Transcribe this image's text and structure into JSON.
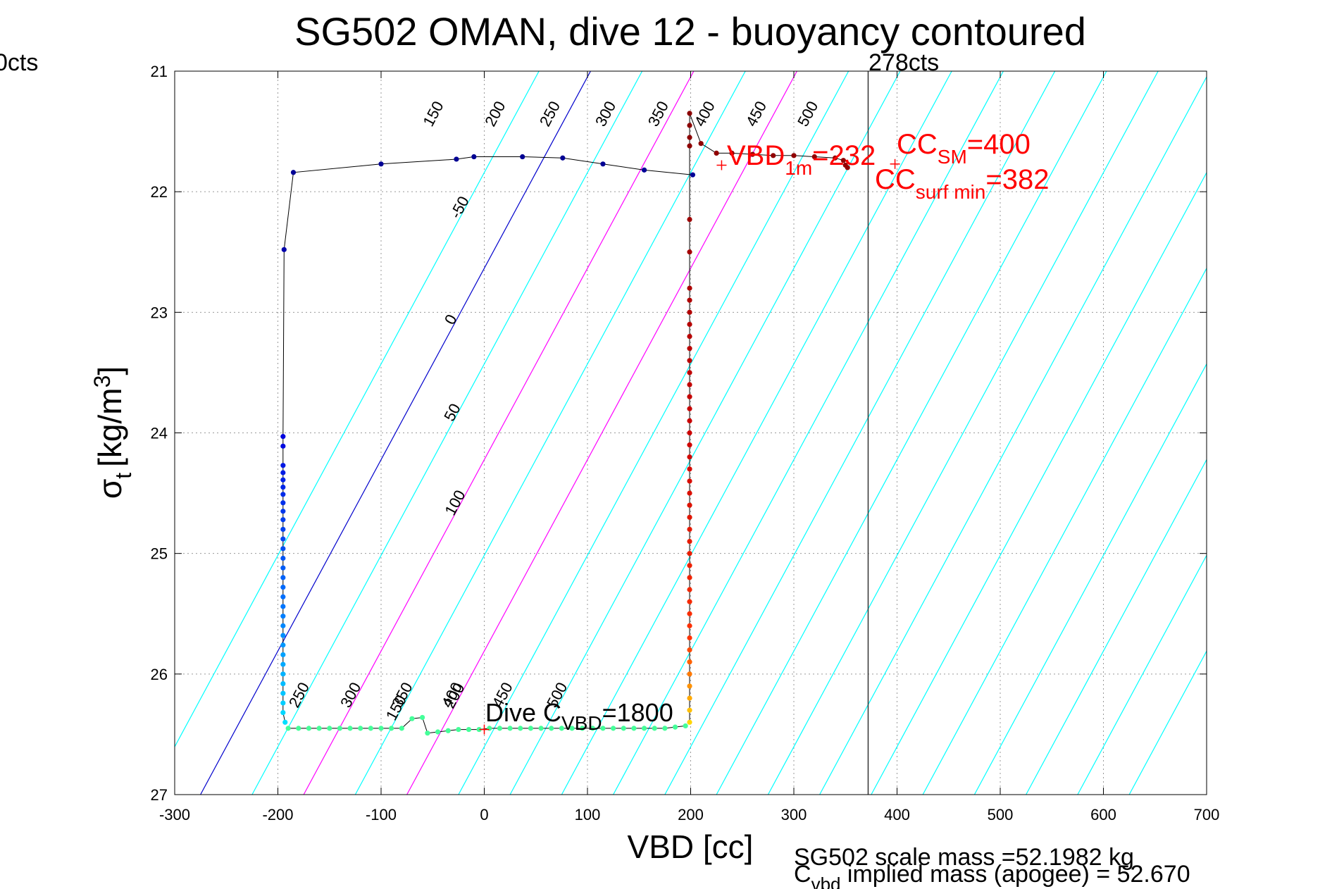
{
  "chart_data": {
    "type": "scatter",
    "title": "SG502 OMAN, dive 12 - buoyancy contoured",
    "xlabel": "VBD [cc]",
    "ylabel": {
      "main": "σ",
      "sub": "t",
      "unit_pre": "[kg/m",
      "unit_sup": "3",
      "unit_post": "]"
    },
    "xlim": [
      -300,
      700
    ],
    "ylim": [
      27,
      21
    ],
    "y_reversed": true,
    "grid": true,
    "xticks": [
      -300,
      -200,
      -100,
      0,
      100,
      200,
      300,
      400,
      500,
      600,
      700
    ],
    "yticks": [
      21,
      22,
      23,
      24,
      25,
      26,
      27
    ],
    "contours": [
      {
        "value": -50,
        "label": "-50",
        "color": "#00ffff"
      },
      {
        "value": 0,
        "label": "0",
        "color": "#0000cc"
      },
      {
        "value": 50,
        "label": "50",
        "color": "#00ffff"
      },
      {
        "value": 100,
        "label": "100",
        "color": "#ff00ff"
      },
      {
        "value": 150,
        "label": "150",
        "color": "#00ffff"
      },
      {
        "value": 200,
        "label": "200",
        "color": "#ff00ff"
      },
      {
        "value": 250,
        "label": "250",
        "color": "#00ffff"
      },
      {
        "value": 300,
        "label": "300",
        "color": "#00ffff"
      },
      {
        "value": 350,
        "label": "350",
        "color": "#00ffff"
      },
      {
        "value": 400,
        "label": "400",
        "color": "#00ffff"
      },
      {
        "value": 450,
        "label": "450",
        "color": "#00ffff"
      },
      {
        "value": 500,
        "label": "500",
        "color": "#00ffff"
      }
    ],
    "contour_model": {
      "vbd_at_zero_sigma_27": -275,
      "vbd_per_kg_m3": 63
    },
    "top_contour_labels": [
      {
        "label": "150",
        "x": -45
      },
      {
        "label": "200",
        "x": 15
      },
      {
        "label": "250",
        "x": 68
      },
      {
        "label": "300",
        "x": 122
      },
      {
        "label": "350",
        "x": 173
      },
      {
        "label": "400",
        "x": 218
      },
      {
        "label": "450",
        "x": 268
      },
      {
        "label": "500",
        "x": 318
      }
    ],
    "left_contour_labels": [
      {
        "label": "-50",
        "y": 22.15
      },
      {
        "label": "0",
        "y": 23.08
      },
      {
        "label": "50",
        "y": 23.85
      },
      {
        "label": "100",
        "y": 24.6
      },
      {
        "label": "150",
        "y": 26.3
      },
      {
        "label": "200",
        "y": 26.2
      }
    ],
    "bottom_contour_labels": [
      {
        "label": "250",
        "x": -175
      },
      {
        "label": "300",
        "x": -125
      },
      {
        "label": "350",
        "x": -75
      },
      {
        "label": "400",
        "x": -27
      },
      {
        "label": "450",
        "x": 22
      },
      {
        "label": "500",
        "x": 75
      }
    ],
    "series": [
      {
        "name": "descent",
        "color": "#0000aa",
        "points": [
          [
            202,
            21.86
          ],
          [
            155,
            21.82
          ],
          [
            115,
            21.77
          ],
          [
            76,
            21.72
          ],
          [
            37,
            21.71
          ],
          [
            -10,
            21.71
          ],
          [
            -27,
            21.73
          ],
          [
            -100,
            21.77
          ],
          [
            -185,
            21.84
          ],
          [
            -194,
            22.48
          ],
          [
            -195,
            24.03
          ],
          [
            -195,
            24.11
          ],
          [
            -195,
            24.27
          ],
          [
            -195,
            24.33
          ],
          [
            -195,
            24.39
          ],
          [
            -195,
            24.45
          ],
          [
            -195,
            24.51
          ],
          [
            -195,
            24.58
          ],
          [
            -195,
            24.65
          ],
          [
            -195,
            24.72
          ],
          [
            -195,
            24.8
          ],
          [
            -195,
            24.88
          ],
          [
            -195,
            24.96
          ],
          [
            -195,
            25.04
          ],
          [
            -195,
            25.12
          ],
          [
            -195,
            25.2
          ],
          [
            -195,
            25.28
          ],
          [
            -195,
            25.36
          ],
          [
            -195,
            25.44
          ],
          [
            -195,
            25.52
          ],
          [
            -195,
            25.6
          ],
          [
            -195,
            25.68
          ],
          [
            -195,
            25.76
          ],
          [
            -195,
            25.84
          ],
          [
            -195,
            25.92
          ],
          [
            -195,
            26.0
          ],
          [
            -195,
            26.08
          ],
          [
            -195,
            26.16
          ],
          [
            -195,
            26.24
          ],
          [
            -195,
            26.32
          ],
          [
            -193,
            26.4
          ]
        ]
      },
      {
        "name": "bottom",
        "color": "#44ff99",
        "points": [
          [
            -190,
            26.45
          ],
          [
            -180,
            26.45
          ],
          [
            -170,
            26.45
          ],
          [
            -160,
            26.45
          ],
          [
            -150,
            26.45
          ],
          [
            -140,
            26.45
          ],
          [
            -130,
            26.45
          ],
          [
            -120,
            26.45
          ],
          [
            -110,
            26.45
          ],
          [
            -100,
            26.45
          ],
          [
            -90,
            26.45
          ],
          [
            -80,
            26.45
          ],
          [
            -70,
            26.37
          ],
          [
            -60,
            26.36
          ],
          [
            -55,
            26.49
          ],
          [
            -45,
            26.48
          ],
          [
            -35,
            26.47
          ],
          [
            -25,
            26.46
          ],
          [
            -15,
            26.46
          ],
          [
            -5,
            26.46
          ],
          [
            5,
            26.45
          ],
          [
            15,
            26.45
          ],
          [
            25,
            26.45
          ],
          [
            35,
            26.45
          ],
          [
            45,
            26.45
          ],
          [
            55,
            26.45
          ],
          [
            65,
            26.45
          ],
          [
            75,
            26.45
          ],
          [
            85,
            26.45
          ],
          [
            95,
            26.45
          ],
          [
            105,
            26.45
          ],
          [
            115,
            26.45
          ],
          [
            125,
            26.45
          ],
          [
            135,
            26.45
          ],
          [
            145,
            26.45
          ],
          [
            155,
            26.45
          ],
          [
            165,
            26.45
          ],
          [
            175,
            26.45
          ],
          [
            185,
            26.44
          ],
          [
            195,
            26.43
          ]
        ]
      },
      {
        "name": "ascent",
        "color": "#aa0000",
        "points": [
          [
            199,
            26.4
          ],
          [
            199,
            26.3
          ],
          [
            199,
            26.2
          ],
          [
            199,
            26.1
          ],
          [
            199,
            26.0
          ],
          [
            199,
            25.9
          ],
          [
            199,
            25.8
          ],
          [
            199,
            25.7
          ],
          [
            199,
            25.6
          ],
          [
            199,
            25.5
          ],
          [
            199,
            25.4
          ],
          [
            199,
            25.3
          ],
          [
            199,
            25.2
          ],
          [
            199,
            25.1
          ],
          [
            199,
            25.0
          ],
          [
            199,
            24.9
          ],
          [
            199,
            24.8
          ],
          [
            199,
            24.7
          ],
          [
            199,
            24.6
          ],
          [
            199,
            24.5
          ],
          [
            199,
            24.4
          ],
          [
            199,
            24.3
          ],
          [
            199,
            24.2
          ],
          [
            199,
            24.1
          ],
          [
            199,
            24.0
          ],
          [
            199,
            23.9
          ],
          [
            199,
            23.8
          ],
          [
            199,
            23.7
          ],
          [
            199,
            23.6
          ],
          [
            199,
            23.5
          ],
          [
            199,
            23.4
          ],
          [
            199,
            23.3
          ],
          [
            199,
            23.2
          ],
          [
            199,
            23.1
          ],
          [
            199,
            23.0
          ],
          [
            199,
            22.9
          ],
          [
            199,
            22.8
          ],
          [
            199,
            22.5
          ],
          [
            199,
            22.23
          ],
          [
            199,
            21.62
          ],
          [
            199,
            21.55
          ],
          [
            199,
            21.45
          ],
          [
            199,
            21.35
          ],
          [
            210,
            21.6
          ],
          [
            225,
            21.68
          ],
          [
            240,
            21.68
          ],
          [
            260,
            21.69
          ],
          [
            280,
            21.7
          ],
          [
            300,
            21.7
          ],
          [
            320,
            21.71
          ],
          [
            340,
            21.72
          ],
          [
            348,
            21.74
          ],
          [
            350,
            21.78
          ],
          [
            352,
            21.8
          ]
        ]
      }
    ],
    "markers": [
      {
        "name": "vbd-1m-marker",
        "x": 230,
        "y": 21.78,
        "color": "#ff0000"
      },
      {
        "name": "cc-sm-marker",
        "x": 398,
        "y": 21.77,
        "color": "#ff0000"
      },
      {
        "name": "dive-cvbd-marker",
        "x": 0,
        "y": 26.46,
        "color": "#ff0000"
      }
    ],
    "vline": {
      "x": 372,
      "label": "278cts"
    },
    "annotations": {
      "left_cut_label": "0cts",
      "vbd_1m": {
        "main": "VBD",
        "sub": "1m",
        "post": "=232"
      },
      "cc_sm": {
        "main": "CC",
        "sub": "SM",
        "post": "=400"
      },
      "cc_surf_min": {
        "main": "CC",
        "sub": "surf min",
        "post": "=382"
      },
      "dive_cvbd": {
        "main": "Dive C",
        "sub": "VBD",
        "post": "=1800"
      },
      "scale_mass": "SG502 scale mass =52.1982 kg",
      "implied_mass": {
        "main": "C",
        "sub": "vbd",
        "post": " implied mass (apogee) = 52.670"
      }
    }
  }
}
